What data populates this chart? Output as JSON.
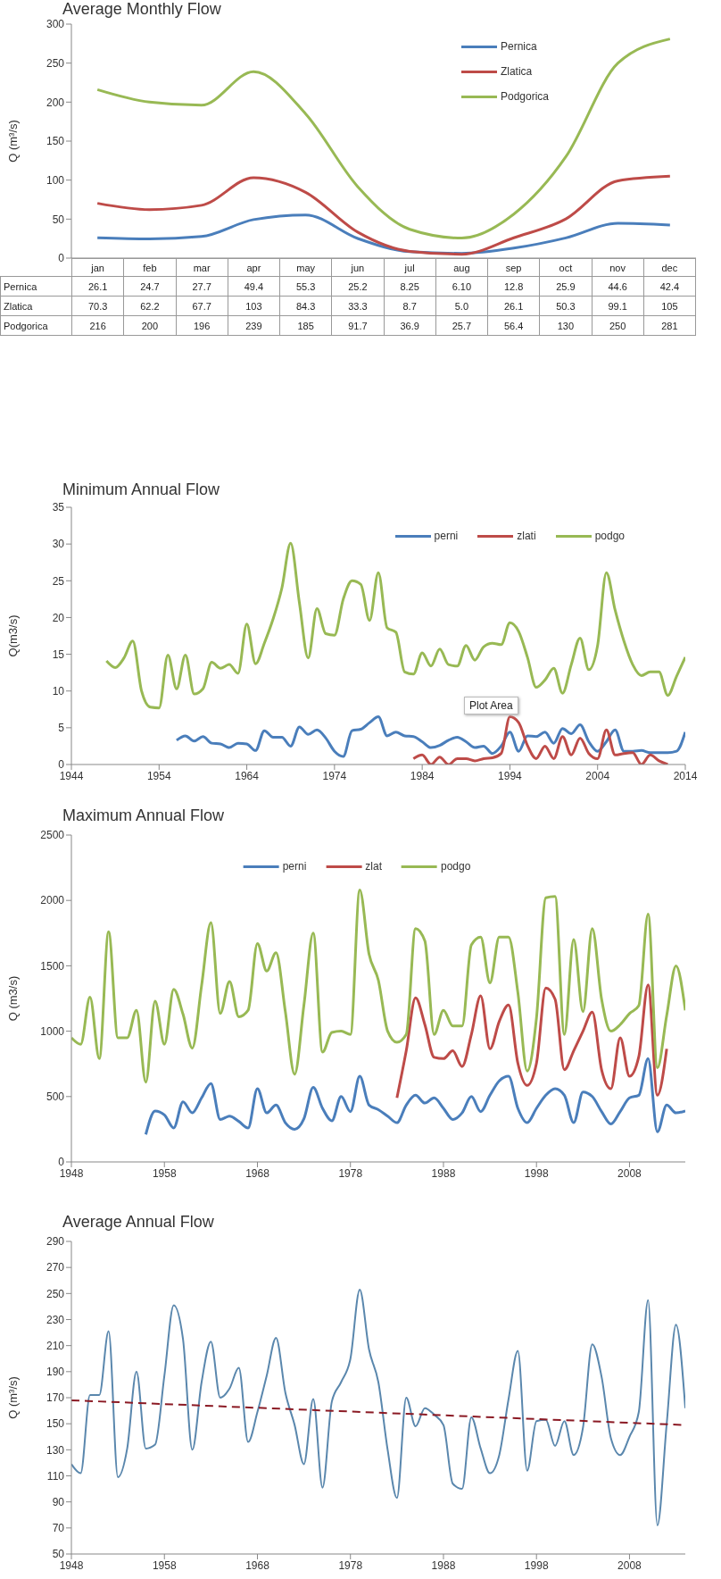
{
  "chart_data": [
    {
      "type": "line",
      "title": "Average Monthly Flow",
      "ylabel": "Q (m³/s)",
      "categories": [
        "jan",
        "feb",
        "mar",
        "apr",
        "may",
        "jun",
        "jul",
        "aug",
        "sep",
        "oct",
        "nov",
        "dec"
      ],
      "ylim": [
        0,
        300
      ],
      "yticks": [
        0,
        50,
        100,
        150,
        200,
        250,
        300
      ],
      "legend": "top right",
      "series": [
        {
          "name": "Pernica",
          "color": "#4a7ebb",
          "values": [
            26.1,
            24.7,
            27.7,
            49.4,
            55.3,
            25.2,
            8.25,
            6.1,
            12.8,
            25.9,
            44.6,
            42.4
          ],
          "value_labels": [
            "26.1",
            "24.7",
            "27.7",
            "49.4",
            "55.3",
            "25.2",
            "8.25",
            "6.10",
            "12.8",
            "25.9",
            "44.6",
            "42.4"
          ]
        },
        {
          "name": "Zlatica",
          "color": "#be4b48",
          "values": [
            70.3,
            62.2,
            67.7,
            103,
            84.3,
            33.3,
            8.7,
            5,
            26.1,
            50.3,
            99.1,
            105
          ],
          "value_labels": [
            "70.3",
            "62.2",
            "67.7",
            "103",
            "84.3",
            "33.3",
            "8.7",
            "5.0",
            "26.1",
            "50.3",
            "99.1",
            "105"
          ]
        },
        {
          "name": "Podgorica",
          "color": "#98b954",
          "values": [
            216,
            200,
            196,
            239,
            185,
            91.7,
            36.9,
            25.7,
            56.4,
            130,
            250,
            281
          ],
          "value_labels": [
            "216",
            "200",
            "196",
            "239",
            "185",
            "91.7",
            "36.9",
            "25.7",
            "56.4",
            "130",
            "250",
            "281"
          ]
        }
      ]
    },
    {
      "type": "line",
      "title": "Minimum Annual Flow",
      "ylabel": "Q(m3/s)",
      "xlim": [
        1944,
        2014
      ],
      "xticks": [
        1944,
        1954,
        1964,
        1974,
        1984,
        1994,
        2004,
        2014
      ],
      "ylim": [
        0,
        35
      ],
      "yticks": [
        0,
        5,
        10,
        15,
        20,
        25,
        30,
        35
      ],
      "legend": "top right",
      "annotations": [
        "Plot Area"
      ],
      "series": [
        {
          "name": "perni",
          "color": "#4a7ebb",
          "x": [
            1956,
            1957,
            1958,
            1959,
            1960,
            1961,
            1962,
            1963,
            1964,
            1965,
            1966,
            1967,
            1968,
            1969,
            1970,
            1971,
            1972,
            1973,
            1974,
            1975,
            1976,
            1977,
            1978,
            1979,
            1980,
            1981,
            1982,
            1983,
            1984,
            1985,
            1986,
            1987,
            1988,
            1989,
            1990,
            1991,
            1992,
            1993,
            1994,
            1995,
            1996,
            1997,
            1998,
            1999,
            2000,
            2001,
            2002,
            2003,
            2004,
            2005,
            2006,
            2007,
            2008,
            2009,
            2010,
            2011,
            2012,
            2013,
            2014
          ],
          "values": [
            3.3,
            3.9,
            3.2,
            3.8,
            2.9,
            2.8,
            2.3,
            2.9,
            2.8,
            1.9,
            4.6,
            3.7,
            3.7,
            2.5,
            5.1,
            4.1,
            4.7,
            3.6,
            1.8,
            1.1,
            4.6,
            4.8,
            5.7,
            6.5,
            3.9,
            4.4,
            3.9,
            3.8,
            3.1,
            2.3,
            2.6,
            3.3,
            3.7,
            3.1,
            2.3,
            2.5,
            1.5,
            2.5,
            4.4,
            1.8,
            3.9,
            3.8,
            4.4,
            2.9,
            4.9,
            4.2,
            5.4,
            3.1,
            1.8,
            3.1,
            4.7,
            1.8,
            1.8,
            1.9,
            1.6,
            1.6,
            1.6,
            1.8,
            4.4
          ]
        },
        {
          "name": "zlati",
          "color": "#be4b48",
          "x": [
            1983,
            1984,
            1985,
            1986,
            1987,
            1988,
            1989,
            1990,
            1991,
            1992,
            1993,
            1994,
            1995,
            1996,
            1997,
            1998,
            1999,
            2000,
            2001,
            2002,
            2003,
            2004,
            2005,
            2006,
            2007,
            2008,
            2009,
            2010,
            2011,
            2012
          ],
          "values": [
            0.8,
            1.3,
            0,
            1,
            0,
            0.8,
            0.8,
            0.5,
            0.8,
            0.9,
            1.5,
            6.5,
            5.7,
            2.6,
            0.8,
            2.5,
            0.8,
            3.8,
            1.3,
            3.6,
            1.5,
            0.8,
            4.7,
            1.3,
            1.5,
            1.6,
            0,
            1.3,
            0.5,
            0
          ]
        },
        {
          "name": "podgo",
          "color": "#98b954",
          "x": [
            1948,
            1949,
            1950,
            1951,
            1952,
            1953,
            1954,
            1955,
            1956,
            1957,
            1958,
            1959,
            1960,
            1961,
            1962,
            1963,
            1964,
            1965,
            1966,
            1967,
            1968,
            1969,
            1970,
            1971,
            1972,
            1973,
            1974,
            1975,
            1976,
            1977,
            1978,
            1979,
            1980,
            1981,
            1982,
            1983,
            1984,
            1985,
            1986,
            1987,
            1988,
            1989,
            1990,
            1991,
            1992,
            1993,
            1994,
            1995,
            1996,
            1997,
            1998,
            1999,
            2000,
            2001,
            2002,
            2003,
            2004,
            2005,
            2006,
            2007,
            2008,
            2009,
            2010,
            2011,
            2012,
            2013,
            2014
          ],
          "values": [
            14.1,
            13.2,
            14.5,
            16.8,
            10,
            7.8,
            7.7,
            14.9,
            10.3,
            14.9,
            9.6,
            10.3,
            13.9,
            13.1,
            13.6,
            12.4,
            19.1,
            13.7,
            16.5,
            19.8,
            24,
            30.1,
            22,
            14.5,
            21.2,
            17.8,
            17.6,
            22.5,
            25,
            24.5,
            19.6,
            26.1,
            18.6,
            18,
            12.6,
            12.3,
            15.2,
            13.4,
            15.7,
            13.6,
            13.4,
            16.2,
            14.2,
            16,
            16.5,
            16.3,
            19.3,
            18.1,
            14.6,
            10.5,
            11.5,
            13.1,
            9.7,
            13.6,
            17.2,
            12.9,
            16.2,
            26.1,
            21,
            16.8,
            13.6,
            12.1,
            12.6,
            12.6,
            9.4,
            12,
            14.6
          ]
        }
      ]
    },
    {
      "type": "line",
      "title": "Maximum Annual Flow",
      "ylabel": "Q (m3/s)",
      "xlim": [
        1948,
        2014
      ],
      "xticks": [
        1948,
        1958,
        1968,
        1978,
        1988,
        1998,
        2008
      ],
      "ylim": [
        0,
        2500
      ],
      "yticks": [
        0,
        500,
        1000,
        1500,
        2000,
        2500
      ],
      "legend": "top",
      "series": [
        {
          "name": "perni",
          "color": "#4a7ebb",
          "x": [
            1956,
            1957,
            1958,
            1959,
            1960,
            1961,
            1962,
            1963,
            1964,
            1965,
            1966,
            1967,
            1968,
            1969,
            1970,
            1971,
            1972,
            1973,
            1974,
            1975,
            1976,
            1977,
            1978,
            1979,
            1980,
            1981,
            1982,
            1983,
            1984,
            1985,
            1986,
            1987,
            1988,
            1989,
            1990,
            1991,
            1992,
            1993,
            1994,
            1995,
            1996,
            1997,
            1998,
            1999,
            2000,
            2001,
            2002,
            2003,
            2004,
            2005,
            2006,
            2007,
            2008,
            2009,
            2010,
            2011,
            2012,
            2013,
            2014
          ],
          "values": [
            210,
            390,
            360,
            260,
            460,
            375,
            490,
            600,
            325,
            350,
            310,
            260,
            560,
            375,
            435,
            300,
            250,
            330,
            570,
            410,
            315,
            500,
            385,
            655,
            435,
            400,
            350,
            300,
            435,
            510,
            450,
            490,
            410,
            325,
            375,
            500,
            385,
            510,
            620,
            655,
            410,
            300,
            410,
            510,
            560,
            510,
            300,
            535,
            500,
            385,
            290,
            385,
            490,
            510,
            790,
            230,
            435,
            375,
            390
          ]
        },
        {
          "name": "zlat",
          "color": "#be4b48",
          "x": [
            1983,
            1984,
            1985,
            1986,
            1987,
            1988,
            1989,
            1990,
            1991,
            1992,
            1993,
            1994,
            1995,
            1996,
            1997,
            1998,
            1999,
            2000,
            2001,
            2002,
            2003,
            2004,
            2005,
            2006,
            2007,
            2008,
            2009,
            2010,
            2011,
            2012
          ],
          "values": [
            490,
            850,
            1255,
            1050,
            800,
            790,
            850,
            730,
            975,
            1270,
            865,
            1075,
            1200,
            755,
            585,
            755,
            1330,
            1245,
            705,
            850,
            1000,
            1145,
            705,
            560,
            950,
            655,
            805,
            1355,
            510,
            865
          ]
        },
        {
          "name": "podgo",
          "color": "#98b954",
          "x": [
            1948,
            1949,
            1950,
            1951,
            1952,
            1953,
            1954,
            1955,
            1956,
            1957,
            1958,
            1959,
            1960,
            1961,
            1962,
            1963,
            1964,
            1965,
            1966,
            1967,
            1968,
            1969,
            1970,
            1971,
            1972,
            1973,
            1974,
            1975,
            1976,
            1977,
            1978,
            1979,
            1980,
            1981,
            1982,
            1983,
            1984,
            1985,
            1986,
            1987,
            1988,
            1989,
            1990,
            1991,
            1992,
            1993,
            1994,
            1995,
            1996,
            1997,
            1998,
            1999,
            2000,
            2001,
            2002,
            2003,
            2004,
            2005,
            2006,
            2007,
            2008,
            2009,
            2010,
            2011,
            2012,
            2013,
            2014
          ],
          "values": [
            950,
            900,
            1260,
            790,
            1760,
            950,
            950,
            1160,
            610,
            1230,
            900,
            1320,
            1130,
            870,
            1350,
            1830,
            1135,
            1380,
            1110,
            1160,
            1670,
            1460,
            1600,
            1150,
            670,
            1200,
            1750,
            840,
            990,
            1000,
            975,
            2080,
            1590,
            1390,
            1000,
            915,
            975,
            1785,
            1690,
            975,
            1160,
            1040,
            1040,
            1660,
            1720,
            1370,
            1720,
            1720,
            1295,
            695,
            1100,
            2020,
            2030,
            975,
            1700,
            1150,
            1785,
            1245,
            1000,
            1050,
            1135,
            1195,
            1895,
            720,
            1120,
            1500,
            1160
          ]
        }
      ]
    },
    {
      "type": "line",
      "title": "Average Annual Flow",
      "ylabel": "Q (m³/s)",
      "xlim": [
        1948,
        2014
      ],
      "xticks": [
        1948,
        1958,
        1968,
        1978,
        1988,
        1998,
        2008
      ],
      "ylim": [
        50,
        290
      ],
      "yticks": [
        50,
        70,
        90,
        110,
        130,
        150,
        170,
        190,
        210,
        230,
        250,
        270,
        290
      ],
      "series": [
        {
          "color": "#5a87ad",
          "x": [
            1948,
            1949,
            1950,
            1951,
            1952,
            1953,
            1954,
            1955,
            1956,
            1957,
            1958,
            1959,
            1960,
            1961,
            1962,
            1963,
            1964,
            1965,
            1966,
            1967,
            1968,
            1969,
            1970,
            1971,
            1972,
            1973,
            1974,
            1975,
            1976,
            1977,
            1978,
            1979,
            1980,
            1981,
            1982,
            1983,
            1984,
            1985,
            1986,
            1987,
            1988,
            1989,
            1990,
            1991,
            1992,
            1993,
            1994,
            1995,
            1996,
            1997,
            1998,
            1999,
            2000,
            2001,
            2002,
            2003,
            2004,
            2005,
            2006,
            2007,
            2008,
            2009,
            2010,
            2011,
            2012,
            2013,
            2014
          ],
          "values": [
            119,
            112,
            172,
            172,
            221,
            109,
            131,
            190,
            131,
            134,
            187,
            241,
            215,
            130,
            182,
            213,
            170,
            177,
            193,
            136,
            159,
            187,
            216,
            174,
            149,
            119,
            169,
            101,
            167,
            182,
            200,
            253,
            207,
            182,
            130,
            93,
            170,
            148,
            162,
            157,
            149,
            104,
            100,
            155,
            131,
            112,
            126,
            169,
            206,
            114,
            152,
            153,
            133,
            152,
            126,
            147,
            211,
            186,
            139,
            126,
            140,
            159,
            245,
            72,
            150,
            226,
            162
          ]
        },
        {
          "type": "line",
          "color": "#8b1a24",
          "line_style": "dashed",
          "x": [
            1948,
            2014
          ],
          "values": [
            168,
            149
          ]
        }
      ]
    }
  ]
}
